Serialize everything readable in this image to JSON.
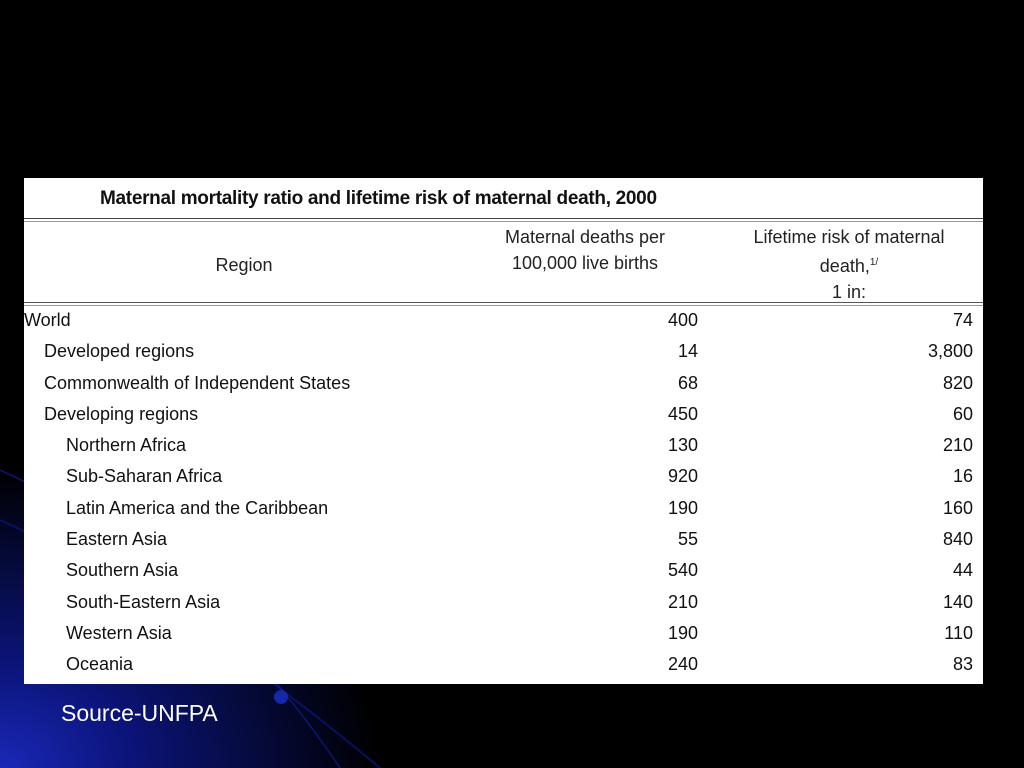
{
  "table": {
    "title": "Maternal mortality ratio and lifetime risk of maternal death, 2000",
    "headers": {
      "region": "Region",
      "mmr_line1": "Maternal deaths per",
      "mmr_line2": "100,000 live births",
      "risk_line1": "Lifetime risk of maternal",
      "risk_line2": "death,",
      "risk_footnote": "1/",
      "risk_line3": "1 in:"
    },
    "rows": [
      {
        "region": "World",
        "mmr": "400",
        "risk": "74",
        "level": 0
      },
      {
        "region": "Developed regions",
        "mmr": "14",
        "risk": "3,800",
        "level": 1
      },
      {
        "region": "Commonwealth of Independent States",
        "mmr": "68",
        "risk": "820",
        "level": 1
      },
      {
        "region": "Developing regions",
        "mmr": "450",
        "risk": "60",
        "level": 1
      },
      {
        "region": "Northern Africa",
        "mmr": "130",
        "risk": "210",
        "level": 2
      },
      {
        "region": "Sub-Saharan Africa",
        "mmr": "920",
        "risk": "16",
        "level": 2
      },
      {
        "region": "Latin America and the Caribbean",
        "mmr": "190",
        "risk": "160",
        "level": 2
      },
      {
        "region": "Eastern Asia",
        "mmr": "55",
        "risk": "840",
        "level": 2
      },
      {
        "region": "Southern Asia",
        "mmr": "540",
        "risk": "44",
        "level": 2
      },
      {
        "region": "South-Eastern Asia",
        "mmr": "210",
        "risk": "140",
        "level": 2
      },
      {
        "region": "Western Asia",
        "mmr": "190",
        "risk": "110",
        "level": 2
      },
      {
        "region": "Oceania",
        "mmr": "240",
        "risk": "83",
        "level": 2
      }
    ]
  },
  "source": "Source-UNFPA",
  "colors": {
    "background": "#000000",
    "accent_blue": "#1a28b8",
    "table_bg": "#ffffff",
    "source_text": "#ffffff"
  }
}
